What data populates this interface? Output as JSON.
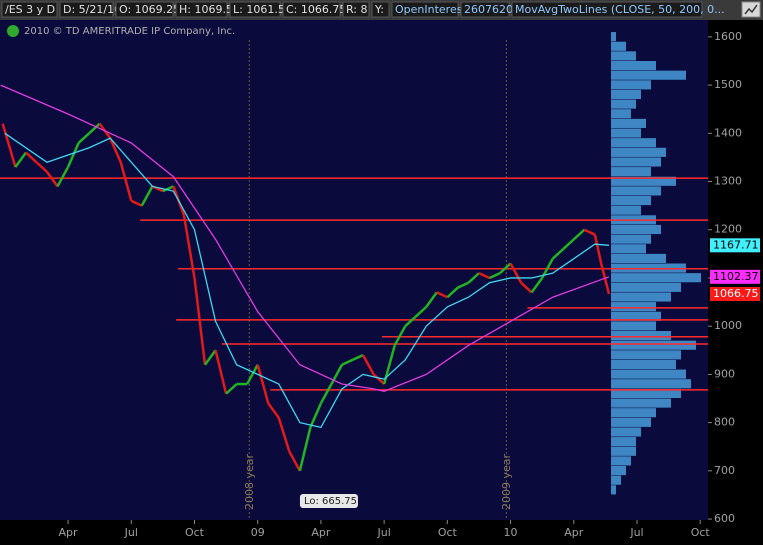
{
  "toolbar": [
    "/ES 3 y D",
    "D: 5/21/10",
    "O: 1069.25",
    "H: 1069.5",
    "L: 1061.5",
    "C: 1066.75",
    "R: 8",
    "Y:",
    "OpenInterest",
    "2607620",
    "MovAvgTwoLines (CLOSE, 50, 200, 0..."
  ],
  "copyright": "2010 © TD AMERITRADE IP Company, Inc.",
  "chart_data": {
    "type": "line",
    "xlim": [
      -0.23,
      33.37
    ],
    "xticks": [
      {
        "value": 3,
        "label": "Apr"
      },
      {
        "value": 6,
        "label": "Jul"
      },
      {
        "value": 9,
        "label": "Oct"
      },
      {
        "value": 12,
        "label": "09"
      },
      {
        "value": 15,
        "label": "Apr"
      },
      {
        "value": 18,
        "label": "Jul"
      },
      {
        "value": 21,
        "label": "Oct"
      },
      {
        "value": 24,
        "label": "10"
      },
      {
        "value": 27,
        "label": "Apr"
      },
      {
        "value": 30,
        "label": "Jul"
      },
      {
        "value": 33,
        "label": "Oct"
      }
    ],
    "ylim": [
      598,
      1635
    ],
    "yticks": [
      600,
      700,
      800,
      900,
      1000,
      1100,
      1200,
      1300,
      1400,
      1500,
      1600
    ],
    "series": [
      {
        "up_color": "#22b422",
        "down_color": "#e21a1a",
        "x": [
          -0.1,
          0.5,
          1,
          1.5,
          2,
          2.5,
          3,
          3.5,
          4,
          4.5,
          5,
          5.5,
          6,
          6.5,
          7,
          7.5,
          8,
          8.5,
          9,
          9.5,
          10,
          10.5,
          11,
          11.5,
          12,
          12.5,
          13,
          13.5,
          14,
          14.5,
          15,
          15.5,
          16,
          16.5,
          17,
          17.5,
          18,
          18.5,
          19,
          19.5,
          20,
          20.5,
          21,
          21.5,
          22,
          22.5,
          23,
          23.5,
          24,
          24.5,
          25,
          25.5,
          26,
          26.5,
          27,
          27.5,
          28,
          28.3,
          28.67
        ],
        "values": [
          1420,
          1330,
          1360,
          1340,
          1320,
          1290,
          1330,
          1380,
          1400,
          1420,
          1390,
          1340,
          1260,
          1250,
          1290,
          1280,
          1290,
          1230,
          1100,
          920,
          950,
          860,
          880,
          880,
          920,
          840,
          810,
          740,
          700,
          790,
          840,
          880,
          920,
          930,
          940,
          900,
          880,
          960,
          1000,
          1020,
          1040,
          1070,
          1060,
          1080,
          1090,
          1110,
          1100,
          1110,
          1130,
          1090,
          1070,
          1100,
          1140,
          1160,
          1180,
          1200,
          1190,
          1130,
          1066.75
        ],
        "label_color": "#ff1a1a",
        "label_text": "#ffffff"
      },
      {
        "color": "#3fd8f0",
        "x": [
          0,
          2,
          4,
          5,
          6,
          7,
          8,
          9,
          10,
          11,
          12,
          13,
          14,
          15,
          16,
          17,
          18,
          19,
          20,
          21,
          22,
          23,
          24,
          25,
          26,
          27,
          28,
          28.67
        ],
        "values": [
          1400,
          1340,
          1370,
          1390,
          1340,
          1290,
          1280,
          1200,
          1010,
          920,
          900,
          880,
          800,
          790,
          870,
          900,
          890,
          930,
          1000,
          1040,
          1060,
          1090,
          1100,
          1100,
          1110,
          1140,
          1170,
          1167.71
        ],
        "label_color": "#40f0ff",
        "label_text": "#000000"
      },
      {
        "color": "#e03ce0",
        "x": [
          -0.2,
          3,
          6,
          8,
          10,
          12,
          14,
          16,
          17.5,
          18,
          20,
          22,
          24,
          26,
          28.67
        ],
        "values": [
          1500,
          1440,
          1380,
          1310,
          1180,
          1030,
          920,
          880,
          870,
          865,
          900,
          960,
          1010,
          1060,
          1102.37
        ],
        "label_color": "#ff2cff",
        "label_text": "#000000"
      }
    ],
    "levels": {
      "color": "#ff2a2a",
      "values": [
        1307,
        1220,
        1119,
        1038,
        1013,
        978,
        963,
        868
      ],
      "starts": [
        -0.23,
        6.42,
        8.22,
        24.8,
        8.13,
        17.9,
        10.3,
        12.6
      ]
    },
    "profile": {
      "color": "#3f86c4",
      "prices": [
        1600,
        1580,
        1560,
        1540,
        1520,
        1500,
        1480,
        1460,
        1440,
        1420,
        1400,
        1380,
        1360,
        1340,
        1320,
        1300,
        1280,
        1260,
        1240,
        1220,
        1200,
        1180,
        1160,
        1140,
        1120,
        1100,
        1080,
        1060,
        1040,
        1020,
        1000,
        980,
        960,
        940,
        920,
        900,
        880,
        860,
        840,
        820,
        800,
        780,
        760,
        740,
        720,
        700,
        680,
        660
      ],
      "sizes": [
        5,
        15,
        25,
        45,
        75,
        40,
        30,
        25,
        20,
        35,
        30,
        45,
        55,
        50,
        40,
        65,
        50,
        40,
        30,
        45,
        50,
        40,
        35,
        55,
        75,
        90,
        70,
        60,
        45,
        50,
        45,
        60,
        85,
        70,
        65,
        75,
        80,
        70,
        60,
        45,
        40,
        30,
        25,
        25,
        20,
        15,
        10,
        5
      ]
    },
    "annotations": [
      "2008 year",
      "2009 year",
      "Lo: 665.75"
    ]
  }
}
